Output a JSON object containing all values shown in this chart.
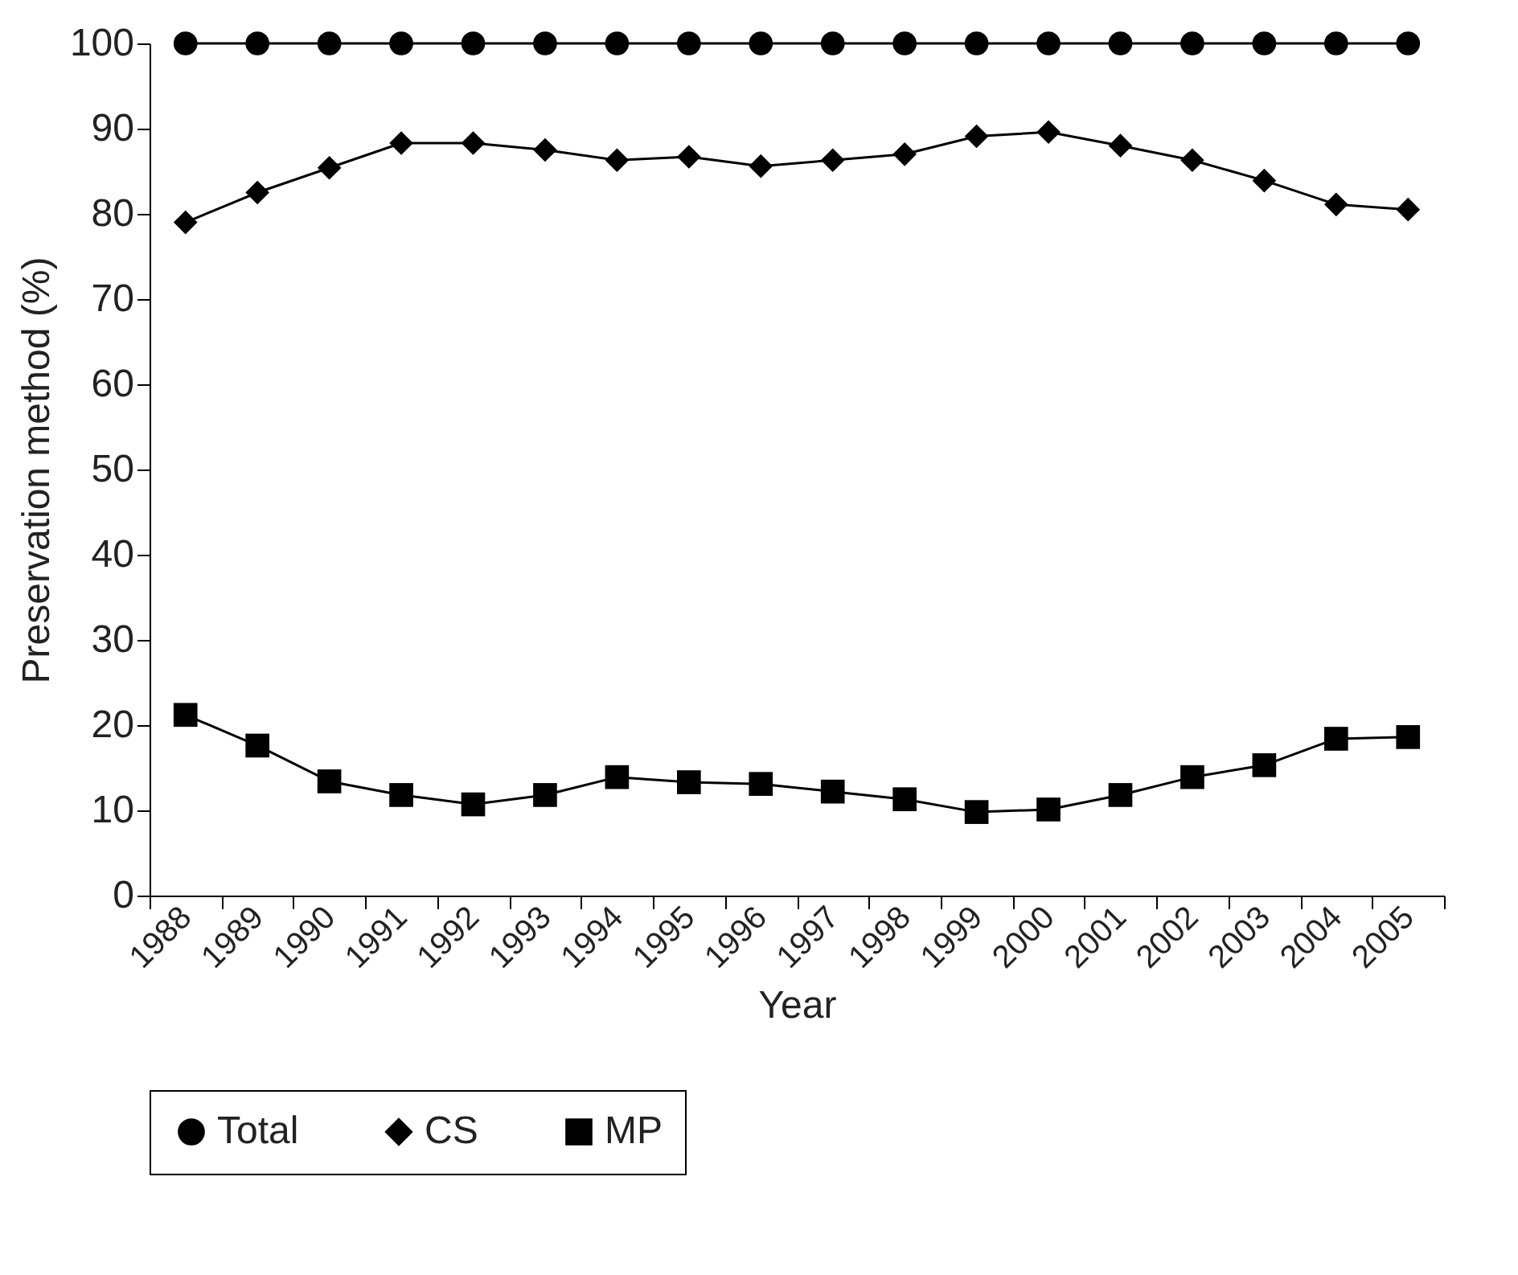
{
  "chart_data": {
    "type": "line",
    "xlabel": "Year",
    "ylabel": "Preservation method (%)",
    "categories": [
      "1988",
      "1989",
      "1990",
      "1991",
      "1992",
      "1993",
      "1994",
      "1995",
      "1996",
      "1997",
      "1998",
      "1999",
      "2000",
      "2001",
      "2002",
      "2003",
      "2004",
      "2005"
    ],
    "series": [
      {
        "name": "Total",
        "color": "#000000",
        "marker": "circle",
        "values": [
          100,
          100,
          100,
          100,
          100,
          100,
          100,
          100,
          100,
          100,
          100,
          100,
          100,
          100,
          100,
          100,
          100,
          100
        ]
      },
      {
        "name": "CS",
        "color": "#000000",
        "marker": "diamond",
        "values": [
          79,
          82.5,
          85.4,
          88.3,
          88.3,
          87.5,
          86.3,
          86.7,
          85.6,
          86.3,
          87,
          89.1,
          89.6,
          88,
          86.3,
          83.9,
          81.1,
          80.5
        ]
      },
      {
        "name": "MP",
        "color": "#000000",
        "marker": "square",
        "values": [
          21.2,
          17.6,
          13.4,
          11.8,
          10.7,
          11.8,
          13.9,
          13.3,
          13.1,
          12.2,
          11.3,
          9.8,
          10.1,
          11.8,
          13.9,
          15.3,
          18.4,
          18.6
        ]
      }
    ],
    "ylim": [
      0,
      100
    ],
    "yticks": [
      0,
      10,
      20,
      30,
      40,
      50,
      60,
      70,
      80,
      90,
      100
    ],
    "grid": false,
    "legend": "bottom",
    "line_style": "solid"
  }
}
